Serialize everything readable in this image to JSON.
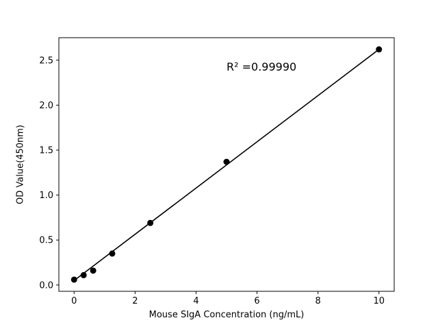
{
  "figure": {
    "background": "#ffffff"
  },
  "chart_data": {
    "type": "scatter",
    "title": "",
    "xlabel": "Mouse SIgA Concentration (ng/mL)",
    "ylabel": "OD Value(450nm)",
    "x": [
      0,
      0.313,
      0.625,
      1.25,
      2.5,
      5,
      10
    ],
    "y": [
      0.06,
      0.11,
      0.16,
      0.35,
      0.69,
      1.37,
      2.62
    ],
    "fit_line": {
      "x": [
        0,
        10
      ],
      "y": [
        0.05,
        2.62
      ]
    },
    "annotation": "R² =0.99990",
    "annotation_pos": {
      "x": 5.0,
      "y": 2.42
    },
    "xlim": [
      -0.5,
      10.5
    ],
    "ylim": [
      -0.07,
      2.75
    ],
    "xticks": [
      0,
      2,
      4,
      6,
      8,
      10
    ],
    "yticks": [
      0.0,
      0.5,
      1.0,
      1.5,
      2.0,
      2.5
    ],
    "grid": false,
    "legend": null,
    "marker_color": "#000000",
    "line_color": "#000000",
    "axis_color": "#000000"
  }
}
